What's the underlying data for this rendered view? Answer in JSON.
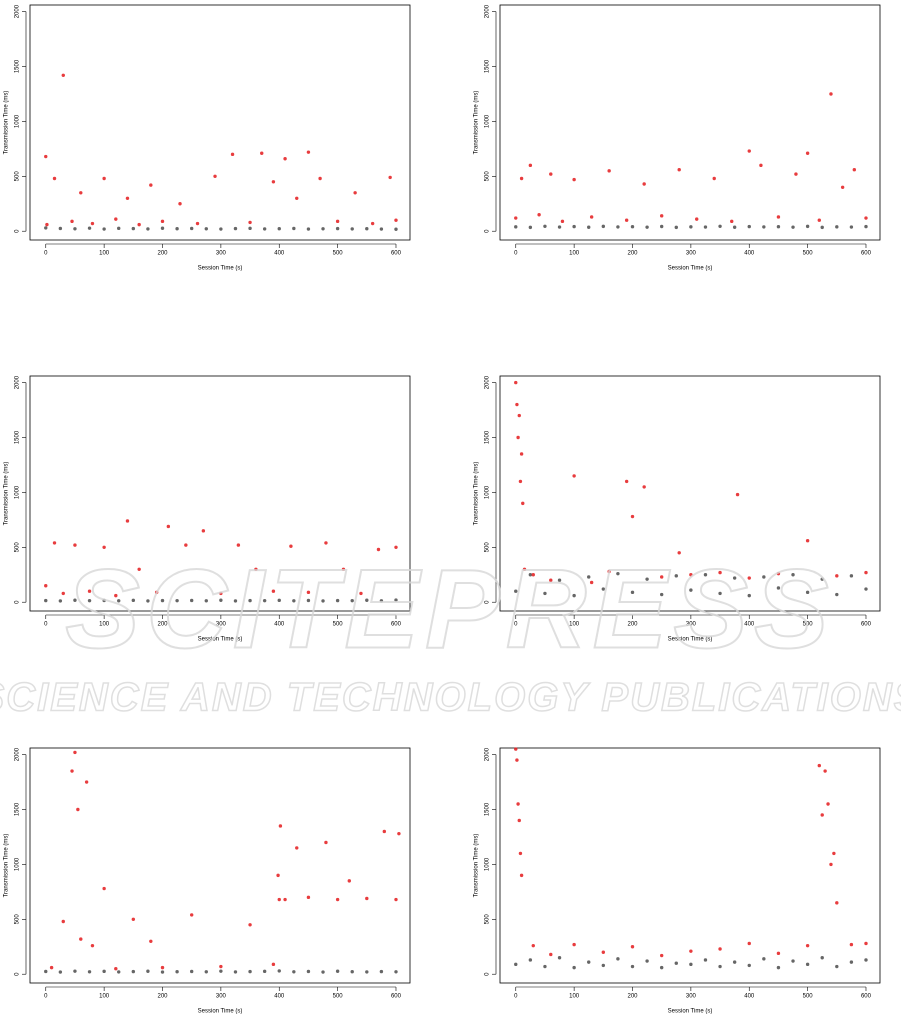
{
  "chart_data": [
    {
      "type": "scatter",
      "x_label": "Session Time (s)",
      "y_label": "Transmission Time (ms)",
      "xlim": [
        -27,
        624
      ],
      "ylim": [
        -80,
        2060
      ],
      "xticks": [
        0,
        100,
        200,
        300,
        400,
        500,
        600
      ],
      "yticks": [
        0,
        500,
        1000,
        1500,
        2000
      ],
      "series": [
        {
          "color": "#000000",
          "x": [
            0,
            25,
            50,
            75,
            100,
            125,
            150,
            175,
            200,
            225,
            250,
            275,
            300,
            325,
            350,
            375,
            400,
            425,
            450,
            475,
            500,
            525,
            550,
            575,
            600
          ],
          "values": [
            30,
            25,
            22,
            28,
            20,
            26,
            24,
            21,
            27,
            23,
            25,
            22,
            20,
            24,
            26,
            21,
            23,
            25,
            20,
            22,
            24,
            21,
            23,
            20,
            18
          ]
        },
        {
          "color": "#e41a1c",
          "x": [
            0,
            2,
            15,
            30,
            45,
            60,
            80,
            100,
            120,
            140,
            160,
            180,
            200,
            230,
            260,
            290,
            320,
            350,
            370,
            390,
            410,
            430,
            450,
            470,
            500,
            530,
            560,
            590,
            600
          ],
          "values": [
            680,
            60,
            480,
            1420,
            90,
            350,
            70,
            480,
            110,
            300,
            60,
            420,
            90,
            250,
            70,
            500,
            700,
            80,
            710,
            450,
            660,
            300,
            720,
            480,
            90,
            350,
            70,
            490,
            100
          ]
        }
      ]
    },
    {
      "type": "scatter",
      "x_label": "Session Time (s)",
      "y_label": "Transmission Time (ms)",
      "xlim": [
        -27,
        624
      ],
      "ylim": [
        -80,
        2060
      ],
      "xticks": [
        0,
        100,
        200,
        300,
        400,
        500,
        600
      ],
      "yticks": [
        0,
        500,
        1000,
        1500,
        2000
      ],
      "series": [
        {
          "color": "#000000",
          "x": [
            0,
            25,
            50,
            75,
            100,
            125,
            150,
            175,
            200,
            225,
            250,
            275,
            300,
            325,
            350,
            375,
            400,
            425,
            450,
            475,
            500,
            525,
            550,
            575,
            600
          ],
          "values": [
            40,
            35,
            45,
            38,
            42,
            36,
            44,
            39,
            41,
            37,
            43,
            35,
            40,
            38,
            45,
            36,
            42,
            39,
            41,
            37,
            44,
            35,
            40,
            38,
            42
          ]
        },
        {
          "color": "#e41a1c",
          "x": [
            0,
            10,
            25,
            40,
            60,
            80,
            100,
            130,
            160,
            190,
            220,
            250,
            280,
            310,
            340,
            370,
            400,
            420,
            450,
            480,
            500,
            520,
            540,
            560,
            580,
            600
          ],
          "values": [
            120,
            480,
            600,
            150,
            520,
            90,
            470,
            130,
            550,
            100,
            430,
            140,
            560,
            110,
            480,
            90,
            730,
            600,
            130,
            520,
            710,
            100,
            1250,
            400,
            560,
            120
          ]
        }
      ]
    },
    {
      "type": "scatter",
      "x_label": "Session Time (s)",
      "y_label": "Transmission Time (ms)",
      "xlim": [
        -27,
        624
      ],
      "ylim": [
        -80,
        2060
      ],
      "xticks": [
        0,
        100,
        200,
        300,
        400,
        500,
        600
      ],
      "yticks": [
        0,
        500,
        1000,
        1500,
        2000
      ],
      "series": [
        {
          "color": "#000000",
          "x": [
            0,
            25,
            50,
            75,
            100,
            125,
            150,
            175,
            200,
            225,
            250,
            275,
            300,
            325,
            350,
            375,
            400,
            425,
            450,
            475,
            500,
            525,
            550,
            575,
            600
          ],
          "values": [
            15,
            12,
            18,
            14,
            16,
            13,
            17,
            12,
            15,
            14,
            16,
            13,
            18,
            12,
            15,
            14,
            17,
            13,
            16,
            12,
            15,
            14,
            18,
            13,
            20
          ]
        },
        {
          "color": "#e41a1c",
          "x": [
            0,
            15,
            30,
            50,
            75,
            100,
            120,
            140,
            160,
            190,
            210,
            240,
            270,
            300,
            330,
            360,
            390,
            420,
            450,
            480,
            510,
            540,
            570,
            600
          ],
          "values": [
            150,
            540,
            80,
            520,
            100,
            500,
            60,
            740,
            300,
            90,
            690,
            520,
            650,
            80,
            520,
            300,
            100,
            510,
            90,
            540,
            300,
            80,
            480,
            500
          ]
        }
      ]
    },
    {
      "type": "scatter",
      "x_label": "Session Time (s)",
      "y_label": "Transmission Time (ms)",
      "xlim": [
        -27,
        624
      ],
      "ylim": [
        -80,
        2060
      ],
      "xticks": [
        0,
        100,
        200,
        300,
        400,
        500,
        600
      ],
      "yticks": [
        0,
        500,
        1000,
        1500,
        2000
      ],
      "series": [
        {
          "color": "#000000",
          "x": [
            0,
            25,
            50,
            75,
            100,
            125,
            150,
            175,
            200,
            225,
            250,
            275,
            300,
            325,
            350,
            375,
            400,
            425,
            450,
            475,
            500,
            525,
            550,
            575,
            600
          ],
          "values": [
            100,
            250,
            80,
            200,
            60,
            230,
            120,
            260,
            90,
            210,
            70,
            240,
            110,
            250,
            80,
            220,
            60,
            230,
            130,
            250,
            90,
            210,
            70,
            240,
            120
          ]
        },
        {
          "color": "#e41a1c",
          "x": [
            0,
            2,
            4,
            6,
            8,
            10,
            12,
            15,
            30,
            60,
            100,
            130,
            160,
            190,
            200,
            220,
            250,
            280,
            300,
            350,
            380,
            400,
            450,
            500,
            550,
            600
          ],
          "values": [
            2000,
            1800,
            1500,
            1700,
            1100,
            1350,
            900,
            300,
            250,
            200,
            1150,
            180,
            280,
            1100,
            780,
            1050,
            230,
            450,
            250,
            270,
            980,
            220,
            260,
            560,
            240,
            270
          ]
        }
      ]
    },
    {
      "type": "scatter",
      "x_label": "Session Time (s)",
      "y_label": "Transmission Time (ms)",
      "xlim": [
        -27,
        624
      ],
      "ylim": [
        -80,
        2060
      ],
      "xticks": [
        0,
        100,
        200,
        300,
        400,
        500,
        600
      ],
      "yticks": [
        0,
        500,
        1000,
        1500,
        2000
      ],
      "series": [
        {
          "color": "#000000",
          "x": [
            0,
            25,
            50,
            75,
            100,
            125,
            150,
            175,
            200,
            225,
            250,
            275,
            300,
            325,
            350,
            375,
            400,
            425,
            450,
            475,
            500,
            525,
            550,
            575,
            600
          ],
          "values": [
            25,
            20,
            28,
            22,
            26,
            21,
            24,
            27,
            20,
            23,
            25,
            22,
            28,
            21,
            24,
            26,
            30,
            22,
            25,
            20,
            27,
            23,
            21,
            24,
            22
          ]
        },
        {
          "color": "#e41a1c",
          "x": [
            10,
            30,
            45,
            50,
            55,
            60,
            70,
            80,
            100,
            120,
            150,
            180,
            200,
            250,
            300,
            350,
            390,
            398,
            400,
            402,
            410,
            430,
            450,
            480,
            500,
            520,
            550,
            580,
            600,
            605
          ],
          "values": [
            60,
            480,
            1850,
            2020,
            1500,
            320,
            1750,
            260,
            780,
            50,
            500,
            300,
            60,
            540,
            70,
            450,
            90,
            900,
            680,
            1350,
            680,
            1150,
            700,
            1200,
            680,
            850,
            690,
            1300,
            680,
            1280
          ]
        }
      ]
    },
    {
      "type": "scatter",
      "x_label": "Session Time (s)",
      "y_label": "Transmission Time (ms)",
      "xlim": [
        -27,
        624
      ],
      "ylim": [
        -80,
        2060
      ],
      "xticks": [
        0,
        100,
        200,
        300,
        400,
        500,
        600
      ],
      "yticks": [
        0,
        500,
        1000,
        1500,
        2000
      ],
      "series": [
        {
          "color": "#000000",
          "x": [
            0,
            25,
            50,
            75,
            100,
            125,
            150,
            175,
            200,
            225,
            250,
            275,
            300,
            325,
            350,
            375,
            400,
            425,
            450,
            475,
            500,
            525,
            550,
            575,
            600
          ],
          "values": [
            90,
            130,
            70,
            150,
            60,
            110,
            80,
            140,
            70,
            120,
            60,
            100,
            90,
            130,
            70,
            110,
            80,
            140,
            60,
            120,
            90,
            150,
            70,
            110,
            130
          ]
        },
        {
          "color": "#e41a1c",
          "x": [
            0,
            2,
            4,
            6,
            8,
            10,
            30,
            60,
            100,
            150,
            200,
            250,
            300,
            350,
            400,
            450,
            500,
            520,
            525,
            530,
            535,
            540,
            545,
            550,
            575,
            600
          ],
          "values": [
            2050,
            1950,
            1550,
            1400,
            1100,
            900,
            260,
            180,
            270,
            200,
            250,
            170,
            210,
            230,
            280,
            190,
            260,
            1900,
            1450,
            1850,
            1550,
            1000,
            1100,
            650,
            270,
            280
          ]
        }
      ]
    }
  ],
  "watermark": {
    "logo": "SCITEPRESS",
    "tagline": "SCIENCE AND TECHNOLOGY PUBLICATIONS"
  }
}
